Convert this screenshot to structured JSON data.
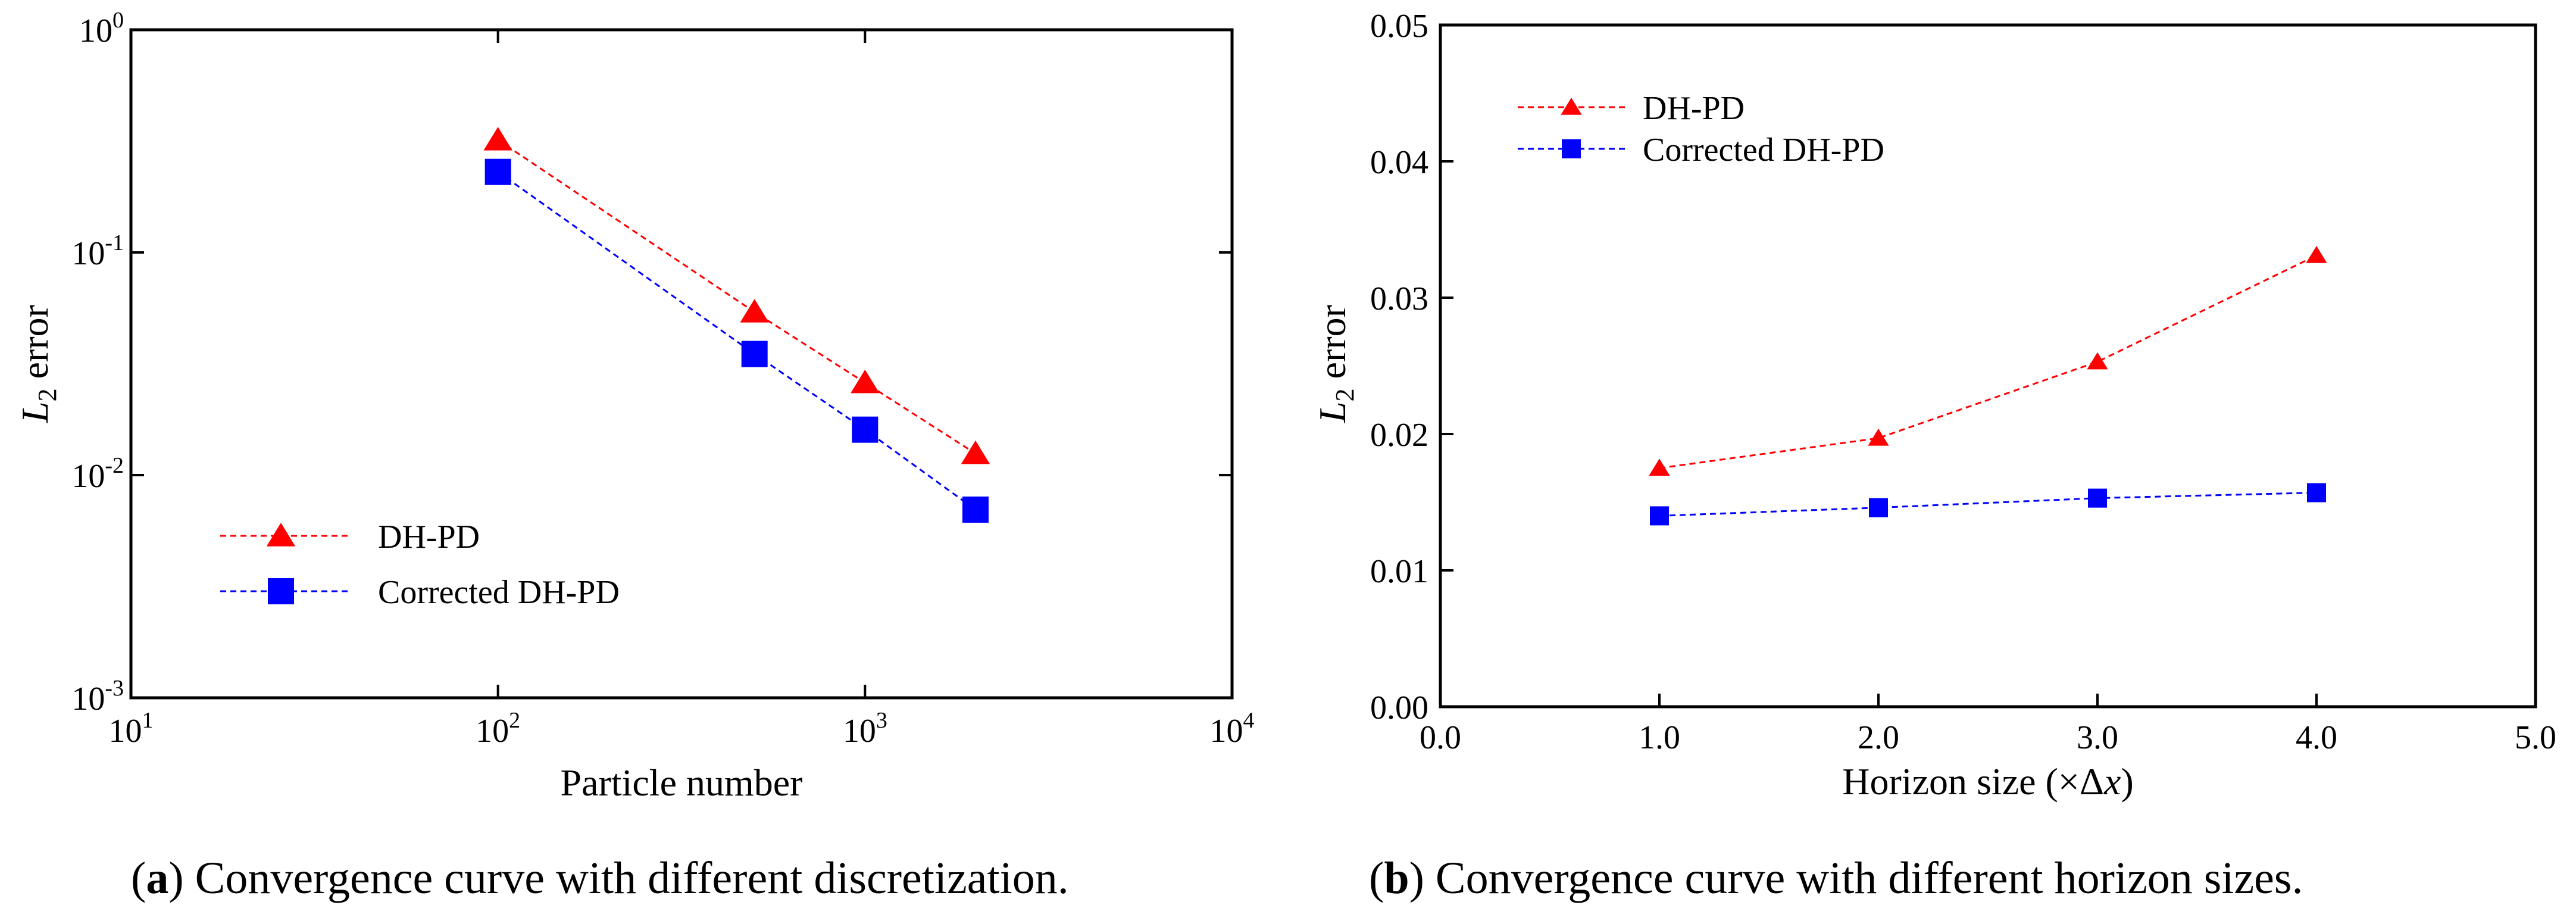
{
  "chart_data": [
    {
      "type": "line",
      "panel": "a",
      "x_scale": "log",
      "y_scale": "log",
      "xlabel": "Particle number",
      "ylabel_main": "L",
      "ylabel_sub": "2",
      "ylabel_rest": " error",
      "xlim": [
        10,
        10000
      ],
      "ylim": [
        0.001,
        1
      ],
      "x_ticks": [
        {
          "value": 10,
          "base": "10",
          "exp": "1"
        },
        {
          "value": 100,
          "base": "10",
          "exp": "2"
        },
        {
          "value": 1000,
          "base": "10",
          "exp": "3"
        },
        {
          "value": 10000,
          "base": "10",
          "exp": "4"
        }
      ],
      "y_ticks": [
        {
          "value": 0.001,
          "base": "10",
          "exp": "-3"
        },
        {
          "value": 0.01,
          "base": "10",
          "exp": "-2"
        },
        {
          "value": 0.1,
          "base": "10",
          "exp": "-1"
        },
        {
          "value": 1,
          "base": "10",
          "exp": "0"
        }
      ],
      "legend_position": "bottom-left",
      "series": [
        {
          "name": "DH-PD",
          "color": "#ff0000",
          "marker": "triangle",
          "x": [
            100,
            500,
            1000,
            2000
          ],
          "y": [
            0.32,
            0.054,
            0.026,
            0.0125
          ]
        },
        {
          "name": "Corrected DH-PD",
          "color": "#0000ff",
          "marker": "square",
          "x": [
            100,
            500,
            1000,
            2000
          ],
          "y": [
            0.23,
            0.035,
            0.016,
            0.007
          ]
        }
      ],
      "caption_label": "a",
      "caption_text": ") Convergence curve with different discretization."
    },
    {
      "type": "line",
      "panel": "b",
      "x_scale": "linear",
      "y_scale": "linear",
      "xlabel_main": "Horizon size (×Δ",
      "xlabel_var": "x",
      "xlabel_end": ")",
      "ylabel_main": "L",
      "ylabel_sub": "2",
      "ylabel_rest": " error",
      "xlim": [
        0,
        5
      ],
      "ylim": [
        0,
        0.05
      ],
      "x_ticks": [
        {
          "value": 0,
          "label": "0.0"
        },
        {
          "value": 1,
          "label": "1.0"
        },
        {
          "value": 2,
          "label": "2.0"
        },
        {
          "value": 3,
          "label": "3.0"
        },
        {
          "value": 4,
          "label": "4.0"
        },
        {
          "value": 5,
          "label": "5.0"
        }
      ],
      "y_ticks": [
        {
          "value": 0,
          "label": "0.00"
        },
        {
          "value": 0.01,
          "label": "0.01"
        },
        {
          "value": 0.02,
          "label": "0.02"
        },
        {
          "value": 0.03,
          "label": "0.03"
        },
        {
          "value": 0.04,
          "label": "0.04"
        },
        {
          "value": 0.05,
          "label": "0.05"
        }
      ],
      "legend_position": "top-left",
      "series": [
        {
          "name": "DH-PD",
          "color": "#ff0000",
          "marker": "triangle",
          "x": [
            1,
            2,
            3,
            4
          ],
          "y": [
            0.0175,
            0.0197,
            0.0253,
            0.0331
          ]
        },
        {
          "name": "Corrected DH-PD",
          "color": "#0000ff",
          "marker": "square",
          "x": [
            1,
            2,
            3,
            4
          ],
          "y": [
            0.014,
            0.0146,
            0.0153,
            0.0157
          ]
        }
      ],
      "caption_label": "b",
      "caption_text": ") Convergence curve with different horizon sizes."
    }
  ]
}
